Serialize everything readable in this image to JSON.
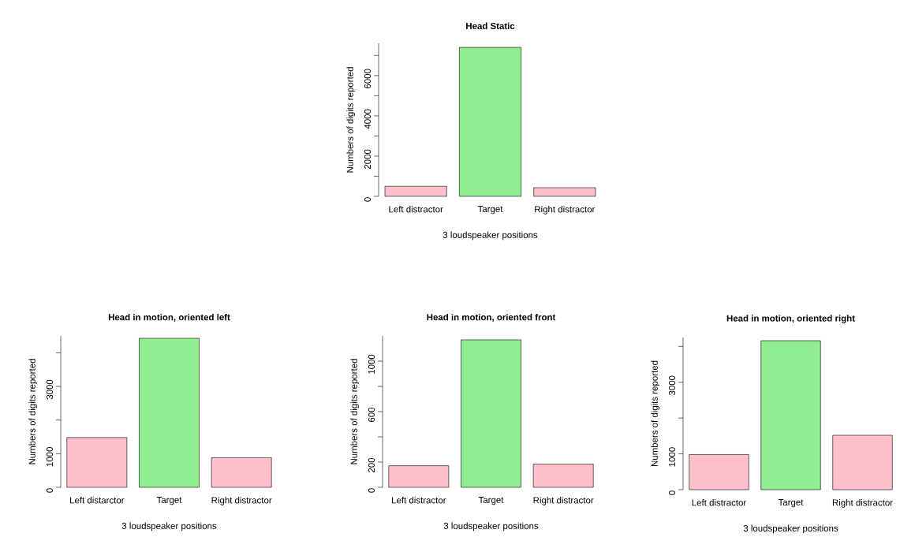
{
  "chart_data": [
    {
      "type": "bar",
      "title": "Head Static",
      "xlabel": "3 loudspeaker positions",
      "ylabel": "Numbers of digits reported",
      "categories": [
        "Left distractor",
        "Target",
        "Right distractor"
      ],
      "values": [
        500,
        7400,
        430
      ],
      "colors": [
        "#ffc0cb",
        "#90ee90",
        "#ffc0cb"
      ],
      "ylim": [
        0,
        7600
      ],
      "yticks": [
        0,
        {
          "value": 1000,
          "label": null
        },
        2000,
        {
          "value": 3000,
          "label": null
        },
        4000,
        {
          "value": 5000,
          "label": null
        },
        6000,
        {
          "value": 7000,
          "label": null
        }
      ]
    },
    {
      "type": "bar",
      "title": "Head in motion, oriented left",
      "xlabel": "3 loudspeaker positions",
      "ylabel": "Numbers of digits reported",
      "categories": [
        "Left distarctor",
        "Target",
        "Right distractor"
      ],
      "values": [
        1480,
        4430,
        880
      ],
      "colors": [
        "#ffc0cb",
        "#90ee90",
        "#ffc0cb"
      ],
      "ylim": [
        0,
        4500
      ],
      "yticks": [
        0,
        1000,
        {
          "value": 2000,
          "label": null
        },
        3000,
        {
          "value": 4000,
          "label": null
        }
      ]
    },
    {
      "type": "bar",
      "title": "Head in motion, oriented front",
      "xlabel": "3 loudspeaker positions",
      "ylabel": "Numbers of digits reported",
      "categories": [
        "Left distractor",
        "Target",
        "Right distractor"
      ],
      "values": [
        171,
        1169,
        184
      ],
      "colors": [
        "#ffc0cb",
        "#90ee90",
        "#ffc0cb"
      ],
      "ylim": [
        0,
        1200
      ],
      "yticks": [
        0,
        200,
        {
          "value": 400,
          "label": null
        },
        600,
        {
          "value": 800,
          "label": null
        },
        1000
      ]
    },
    {
      "type": "bar",
      "title": "Head in motion, oriented right",
      "xlabel": "3 loudspeaker positions",
      "ylabel": "Numbers of digits reported",
      "categories": [
        "Left distractor",
        "Target",
        "Right distractor"
      ],
      "values": [
        980,
        4160,
        1520
      ],
      "colors": [
        "#ffc0cb",
        "#90ee90",
        "#ffc0cb"
      ],
      "ylim": [
        0,
        4250
      ],
      "yticks": [
        0,
        1000,
        {
          "value": 2000,
          "label": null
        },
        3000,
        {
          "value": 4000,
          "label": null
        }
      ]
    }
  ]
}
